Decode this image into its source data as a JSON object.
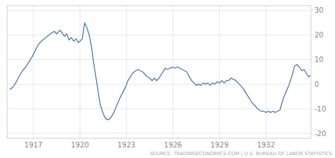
{
  "chart_data": {
    "type": "line",
    "annotation": "SOURCE: TRADINGECONOMICS.COM | U.S. BUREAU OF LABOR STATISTICS",
    "color": "#4a7aab",
    "xlim": [
      1915.3,
      1934.9
    ],
    "ylim": [
      -22,
      32
    ],
    "yticks": [
      -20,
      -10,
      0,
      10,
      20,
      30
    ],
    "xticks": [
      1917,
      1920,
      1923,
      1926,
      1929,
      1932
    ],
    "grid": true,
    "x": [
      1915.5,
      1915.7,
      1915.9,
      1916.1,
      1916.3,
      1916.5,
      1916.7,
      1916.9,
      1917.1,
      1917.3,
      1917.5,
      1917.7,
      1917.9,
      1918.0,
      1918.2,
      1918.35,
      1918.5,
      1918.7,
      1918.85,
      1919.0,
      1919.15,
      1919.3,
      1919.45,
      1919.6,
      1919.75,
      1919.9,
      1920.0,
      1920.15,
      1920.3,
      1920.45,
      1920.6,
      1920.75,
      1920.9,
      1921.1,
      1921.3,
      1921.5,
      1921.65,
      1921.8,
      1921.95,
      1922.15,
      1922.35,
      1922.55,
      1922.75,
      1922.95,
      1923.1,
      1923.25,
      1923.4,
      1923.6,
      1923.75,
      1923.9,
      1924.05,
      1924.2,
      1924.35,
      1924.5,
      1924.65,
      1924.8,
      1924.95,
      1925.1,
      1925.3,
      1925.5,
      1925.65,
      1925.8,
      1926.0,
      1926.15,
      1926.3,
      1926.45,
      1926.6,
      1926.75,
      1926.9,
      1927.05,
      1927.2,
      1927.35,
      1927.5,
      1927.65,
      1927.8,
      1927.95,
      1928.1,
      1928.25,
      1928.4,
      1928.55,
      1928.7,
      1928.85,
      1929.0,
      1929.15,
      1929.3,
      1929.45,
      1929.6,
      1929.75,
      1929.9,
      1930.05,
      1930.2,
      1930.35,
      1930.5,
      1930.65,
      1930.8,
      1930.95,
      1931.1,
      1931.25,
      1931.4,
      1931.55,
      1931.7,
      1931.85,
      1932.0,
      1932.15,
      1932.3,
      1932.45,
      1932.6,
      1932.75,
      1932.9,
      1933.1,
      1933.3,
      1933.5,
      1933.7,
      1933.85,
      1934.0,
      1934.15,
      1934.3,
      1934.45,
      1934.55,
      1934.65,
      1934.75,
      1934.85
    ],
    "values": [
      -2.0,
      -1.0,
      1.0,
      3.5,
      5.5,
      7.0,
      9.0,
      11.0,
      13.5,
      16.0,
      17.5,
      18.5,
      19.5,
      20.0,
      21.0,
      21.5,
      20.5,
      22.0,
      21.0,
      19.5,
      20.5,
      18.0,
      19.0,
      17.5,
      18.5,
      17.0,
      17.5,
      18.5,
      25.0,
      23.0,
      20.0,
      15.0,
      8.0,
      0.0,
      -8.0,
      -12.0,
      -14.0,
      -14.5,
      -14.0,
      -12.0,
      -9.0,
      -6.0,
      -3.5,
      -1.0,
      1.5,
      3.0,
      4.5,
      5.5,
      6.0,
      5.5,
      5.0,
      4.0,
      3.0,
      2.5,
      1.5,
      2.5,
      1.5,
      2.5,
      4.5,
      6.5,
      6.0,
      6.5,
      7.0,
      6.5,
      7.0,
      6.5,
      6.0,
      5.5,
      5.0,
      3.0,
      1.5,
      0.5,
      -0.5,
      0.0,
      -0.5,
      0.5,
      0.0,
      0.5,
      -0.5,
      0.5,
      0.0,
      1.0,
      0.5,
      1.5,
      0.5,
      1.5,
      1.5,
      2.5,
      2.0,
      1.5,
      0.5,
      -0.5,
      -1.5,
      -3.0,
      -4.5,
      -6.0,
      -7.5,
      -8.5,
      -9.5,
      -10.5,
      -11.0,
      -11.0,
      -11.5,
      -11.0,
      -11.5,
      -11.0,
      -11.5,
      -11.0,
      -10.5,
      -6.0,
      -3.0,
      0.0,
      4.0,
      7.5,
      8.0,
      7.0,
      5.5,
      6.0,
      5.0,
      4.0,
      3.0,
      3.5
    ]
  }
}
